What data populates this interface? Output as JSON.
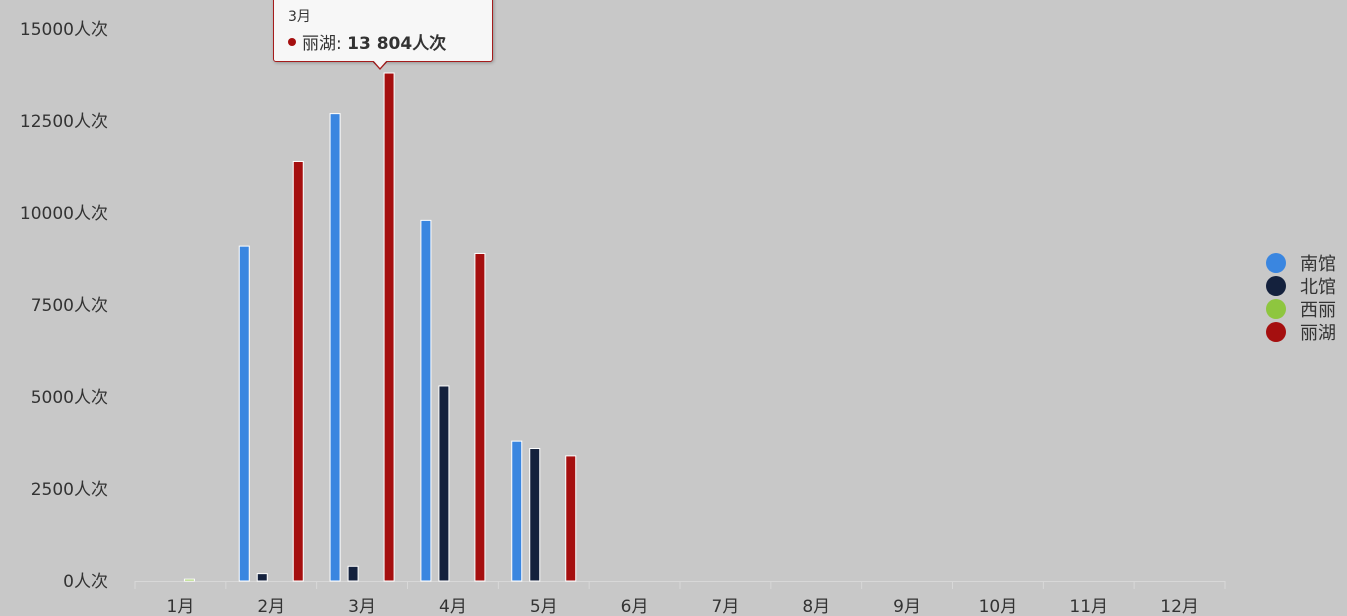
{
  "chart_data": {
    "type": "bar",
    "categories": [
      "1月",
      "2月",
      "3月",
      "4月",
      "5月",
      "6月",
      "7月",
      "8月",
      "9月",
      "10月",
      "11月",
      "12月"
    ],
    "series": [
      {
        "name": "南馆",
        "color": "#3a86e0",
        "values": [
          0,
          9100,
          12700,
          9800,
          3800,
          0,
          0,
          0,
          0,
          0,
          0,
          0
        ]
      },
      {
        "name": "北馆",
        "color": "#14213d",
        "values": [
          0,
          200,
          400,
          5300,
          3600,
          0,
          0,
          0,
          0,
          0,
          0,
          0
        ]
      },
      {
        "name": "西丽",
        "color": "#8ec63f",
        "values": [
          50,
          0,
          0,
          0,
          0,
          0,
          0,
          0,
          0,
          0,
          0,
          0
        ]
      },
      {
        "name": "丽湖",
        "color": "#a50f0f",
        "values": [
          0,
          11400,
          13804,
          8900,
          3400,
          0,
          0,
          0,
          0,
          0,
          0,
          0
        ]
      }
    ],
    "ylim": [
      0,
      15000
    ],
    "yticks": [
      0,
      2500,
      5000,
      7500,
      10000,
      12500,
      15000
    ],
    "ytick_suffix": "人次",
    "legend_position": "right",
    "grid": false
  },
  "tooltip": {
    "category": "3月",
    "series_name": "丽湖",
    "separator": ":",
    "value_text": "13 804人次",
    "color": "#a50f0f"
  }
}
